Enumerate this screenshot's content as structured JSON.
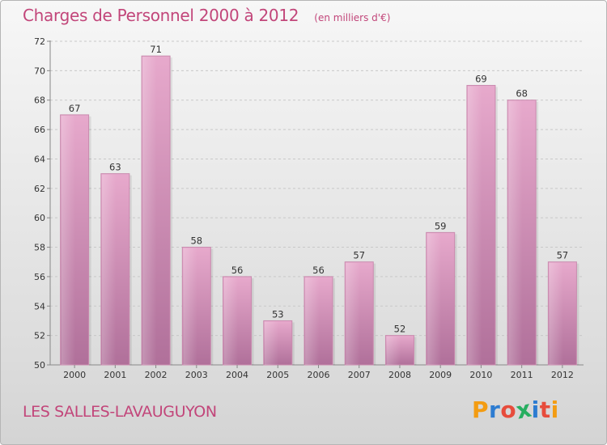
{
  "header": {
    "title": "Charges de Personnel 2000 à 2012",
    "subtitle": "(en milliers d'€)"
  },
  "footer": {
    "town": "LES SALLES-LAVAUGUYON",
    "brand": [
      "P",
      "r",
      "o",
      "x",
      "i",
      "t",
      "i"
    ],
    "brand_colors": [
      "#f39c12",
      "#2d7cd1",
      "#e74c3c",
      "#27ae60",
      "#2d7cd1",
      "#e74c3c",
      "#f39c12"
    ]
  },
  "chart_data": {
    "type": "bar",
    "categories": [
      "2000",
      "2001",
      "2002",
      "2003",
      "2004",
      "2005",
      "2006",
      "2007",
      "2008",
      "2009",
      "2010",
      "2011",
      "2012"
    ],
    "values": [
      67,
      63,
      71,
      58,
      56,
      53,
      56,
      57,
      52,
      59,
      69,
      68,
      57
    ],
    "data_labels": [
      "67",
      "63",
      "71",
      "58",
      "56",
      "53",
      "56",
      "57",
      "52",
      "59",
      "69",
      "68",
      "57"
    ],
    "yticks": [
      "50",
      "52",
      "54",
      "56",
      "58",
      "60",
      "62",
      "64",
      "66",
      "68",
      "70",
      "72"
    ],
    "ylim": [
      50,
      72
    ],
    "grid": true,
    "bar_color": "#d88db7"
  }
}
